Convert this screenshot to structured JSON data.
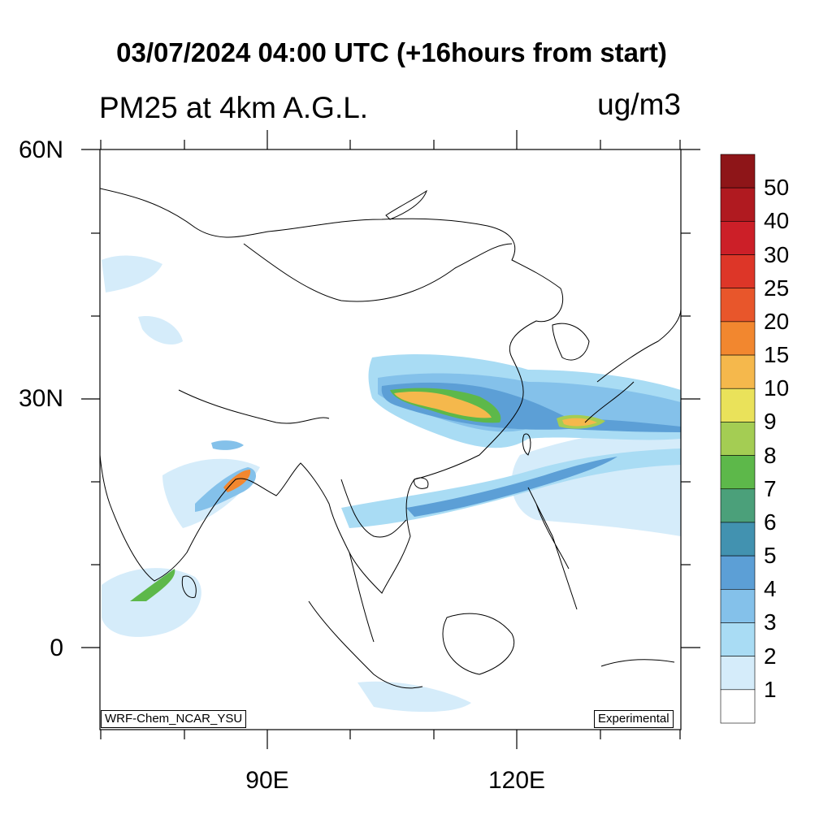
{
  "header": {
    "title": "03/07/2024 04:00 UTC (+16hours from start)",
    "subtitle": "PM25 at 4km A.G.L.",
    "units": "ug/m3"
  },
  "axes": {
    "lat_labels": [
      "60N",
      "30N",
      "0"
    ],
    "lon_labels": [
      "90E",
      "120E"
    ]
  },
  "colorbar": {
    "labels": [
      "50",
      "40",
      "30",
      "25",
      "20",
      "15",
      "10",
      "9",
      "8",
      "7",
      "6",
      "5",
      "4",
      "3",
      "2",
      "1"
    ],
    "colors": [
      "#8e1518",
      "#b01a20",
      "#cc1f28",
      "#dd3628",
      "#e8562b",
      "#f2872f",
      "#f5b84c",
      "#eae25a",
      "#a4cd53",
      "#5db84a",
      "#4ba07a",
      "#4292b0",
      "#5c9fd6",
      "#84c1ea",
      "#a9dcf4",
      "#d5ecfa",
      "#ffffff"
    ]
  },
  "tags": {
    "model": "WRF-Chem_NCAR_YSU",
    "status": "Experimental"
  }
}
